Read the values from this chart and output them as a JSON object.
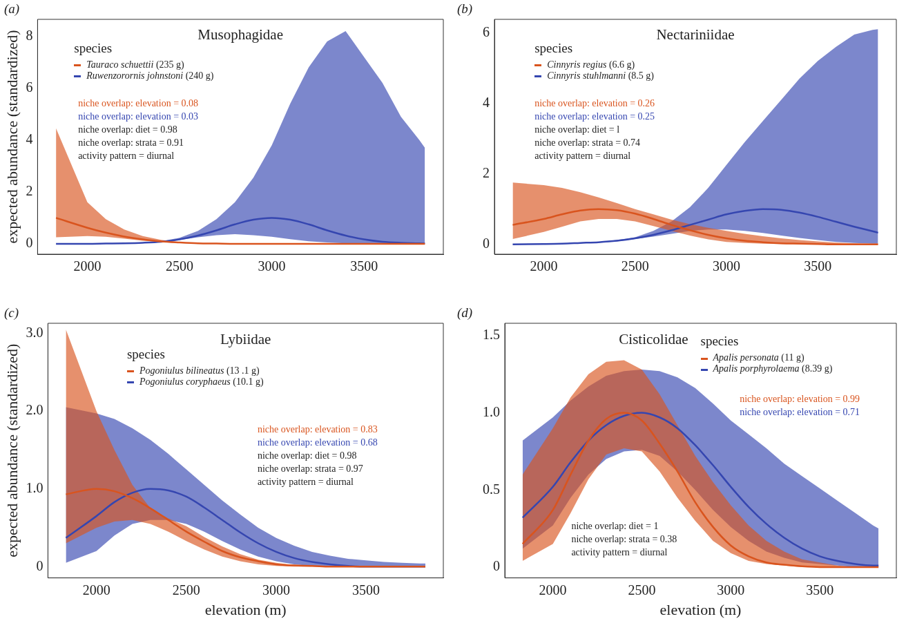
{
  "chart_data": [
    {
      "type": "line",
      "title": "Musophagidae",
      "ylabel": "expected abundance (standardized)",
      "legend_title": "species",
      "legend": "top left",
      "xlim": [
        1730,
        3930
      ],
      "xticks": [
        2000,
        2500,
        3000,
        3500
      ],
      "ylim": [
        -0.4,
        8.65
      ],
      "yticks": [
        0,
        2,
        4,
        6,
        8
      ],
      "grid": false,
      "annotations": [
        "(a)",
        "niche overlap: elevation = 0.08",
        "niche overlap: elevation = 0.03",
        "niche overlap: diet = 0.98",
        "niche overlap: strata = 0.91",
        "activity pattern = diurnal"
      ],
      "x": [
        1830,
        2000,
        2100,
        2200,
        2300,
        2400,
        2500,
        2600,
        2700,
        2800,
        2900,
        3000,
        3100,
        3200,
        3300,
        3400,
        3500,
        3600,
        3700,
        3800,
        3830
      ],
      "series": [
        {
          "name": "Tauraco schuettii (235 g)",
          "color": "#d9541e",
          "values": [
            1.0,
            0.62,
            0.43,
            0.28,
            0.17,
            0.09,
            0.05,
            0.02,
            0.01,
            0,
            0,
            0,
            0,
            0,
            0,
            0,
            0,
            0,
            0,
            0,
            0
          ],
          "lower": [
            0.25,
            0.3,
            0.27,
            0.2,
            0.12,
            0.07,
            0.03,
            0.01,
            0,
            0,
            0,
            0,
            0,
            0,
            0,
            0,
            0,
            0,
            0,
            0,
            0
          ],
          "upper": [
            4.45,
            1.6,
            0.95,
            0.55,
            0.3,
            0.15,
            0.06,
            0.02,
            0.01,
            0,
            0,
            0,
            0,
            0,
            0,
            0,
            0,
            0,
            0,
            0,
            0
          ]
        },
        {
          "name": "Ruwenzorornis johnstoni (240 g)",
          "color": "#3546b0",
          "values": [
            0,
            0,
            0.01,
            0.02,
            0.04,
            0.08,
            0.17,
            0.32,
            0.52,
            0.75,
            0.93,
            1.0,
            0.93,
            0.75,
            0.52,
            0.32,
            0.17,
            0.08,
            0.04,
            0.02,
            0.01
          ],
          "lower": [
            0,
            0,
            0.01,
            0.02,
            0.03,
            0.07,
            0.15,
            0.25,
            0.33,
            0.37,
            0.33,
            0.27,
            0.18,
            0.1,
            0.05,
            0.02,
            0.01,
            0,
            0,
            0,
            0
          ],
          "upper": [
            0,
            0,
            0.01,
            0.02,
            0.05,
            0.1,
            0.23,
            0.5,
            0.95,
            1.6,
            2.55,
            3.8,
            5.4,
            6.8,
            7.8,
            8.2,
            7.2,
            6.2,
            4.9,
            4.0,
            3.7
          ]
        }
      ]
    },
    {
      "type": "line",
      "title": "Nectariniidae",
      "legend_title": "species",
      "legend": "top left",
      "xlim": [
        1730,
        3930
      ],
      "xticks": [
        2000,
        2500,
        3000,
        3500
      ],
      "ylim": [
        -0.28,
        6.38
      ],
      "yticks": [
        0,
        2,
        4,
        6
      ],
      "grid": false,
      "annotations": [
        "(b)",
        "niche overlap: elevation = 0.26",
        "niche overlap: elevation = 0.25",
        "niche overlap: diet = l",
        "niche overlap: strata = 0.74",
        "activity pattern = diurnal"
      ],
      "x": [
        1830,
        2000,
        2100,
        2200,
        2300,
        2400,
        2500,
        2600,
        2700,
        2800,
        2900,
        3000,
        3100,
        3200,
        3300,
        3400,
        3500,
        3600,
        3700,
        3800,
        3830
      ],
      "series": [
        {
          "name": "Cinnyris regius (6.6 g)",
          "color": "#d9541e",
          "values": [
            0.55,
            0.72,
            0.85,
            0.96,
            1.0,
            0.97,
            0.87,
            0.72,
            0.55,
            0.4,
            0.27,
            0.17,
            0.1,
            0.06,
            0.03,
            0.02,
            0.01,
            0,
            0,
            0,
            0
          ],
          "lower": [
            0.15,
            0.35,
            0.5,
            0.65,
            0.72,
            0.72,
            0.65,
            0.52,
            0.38,
            0.25,
            0.14,
            0.07,
            0.04,
            0.02,
            0.01,
            0,
            0,
            0,
            0,
            0,
            0
          ],
          "upper": [
            1.75,
            1.68,
            1.6,
            1.48,
            1.33,
            1.17,
            1.0,
            0.85,
            0.7,
            0.57,
            0.47,
            0.38,
            0.3,
            0.23,
            0.17,
            0.12,
            0.08,
            0.05,
            0.03,
            0.02,
            0.02
          ]
        },
        {
          "name": "Cinnyris stuhlmanni (8.5 g)",
          "color": "#3546b0",
          "values": [
            0,
            0.01,
            0.02,
            0.04,
            0.06,
            0.1,
            0.17,
            0.27,
            0.4,
            0.55,
            0.7,
            0.85,
            0.95,
            1.0,
            0.98,
            0.9,
            0.78,
            0.64,
            0.5,
            0.37,
            0.33
          ],
          "lower": [
            0,
            0.01,
            0.02,
            0.03,
            0.05,
            0.08,
            0.15,
            0.22,
            0.3,
            0.38,
            0.42,
            0.42,
            0.38,
            0.32,
            0.25,
            0.18,
            0.12,
            0.07,
            0.04,
            0.02,
            0.02
          ],
          "upper": [
            0,
            0.01,
            0.02,
            0.04,
            0.07,
            0.12,
            0.2,
            0.38,
            0.65,
            1.05,
            1.6,
            2.25,
            2.9,
            3.5,
            4.1,
            4.7,
            5.2,
            5.6,
            5.95,
            6.08,
            6.1
          ]
        }
      ]
    },
    {
      "type": "line",
      "title": "Lybiidae",
      "xlabel": "elevation (m)",
      "ylabel": "expected abundance (standardized)",
      "legend_title": "species",
      "legend": "top left",
      "xlim": [
        1730,
        3930
      ],
      "xticks": [
        2000,
        2500,
        3000,
        3500
      ],
      "ylim": [
        -0.145,
        3.13
      ],
      "yticks": [
        0,
        {
          "value": 1,
          "label": "1.0"
        },
        {
          "value": 2,
          "label": "2.0"
        },
        {
          "value": 3,
          "label": "3.0"
        }
      ],
      "grid": false,
      "annotations": [
        "(c)",
        "niche overlap: elevation = 0.83",
        "niche overlap: elevation = 0.68",
        "niche overlap: diet = 0.98",
        "niche overlap: strata = 0.97",
        "activity pattern = diurnal"
      ],
      "x": [
        1830,
        2000,
        2100,
        2200,
        2300,
        2400,
        2500,
        2600,
        2700,
        2800,
        2900,
        3000,
        3100,
        3200,
        3300,
        3400,
        3500,
        3600,
        3700,
        3800,
        3830
      ],
      "series": [
        {
          "name": "Pogoniulus bilineatus (13 .1 g)",
          "color": "#d9541e",
          "values": [
            0.93,
            1.0,
            0.97,
            0.88,
            0.75,
            0.6,
            0.45,
            0.32,
            0.2,
            0.12,
            0.07,
            0.03,
            0.015,
            0.01,
            0,
            0,
            0,
            0,
            0,
            0,
            0
          ],
          "lower": [
            0.3,
            0.5,
            0.58,
            0.6,
            0.55,
            0.45,
            0.33,
            0.22,
            0.13,
            0.07,
            0.03,
            0.01,
            0,
            0,
            0,
            0,
            0,
            0,
            0,
            0,
            0
          ],
          "upper": [
            3.05,
            2.0,
            1.5,
            1.05,
            0.75,
            0.62,
            0.52,
            0.38,
            0.26,
            0.16,
            0.09,
            0.05,
            0.02,
            0.01,
            0,
            0,
            0,
            0,
            0,
            0,
            0
          ]
        },
        {
          "name": "Pogoniulus coryphaeus (10.1 g)",
          "color": "#3546b0",
          "values": [
            0.37,
            0.65,
            0.83,
            0.95,
            1.0,
            0.98,
            0.9,
            0.76,
            0.6,
            0.44,
            0.3,
            0.19,
            0.11,
            0.06,
            0.03,
            0.01,
            0,
            0,
            0,
            0,
            0
          ],
          "lower": [
            0.05,
            0.2,
            0.4,
            0.55,
            0.6,
            0.6,
            0.55,
            0.45,
            0.33,
            0.22,
            0.13,
            0.07,
            0.03,
            0.01,
            0,
            0,
            0,
            0,
            0,
            0,
            0
          ],
          "upper": [
            2.05,
            1.97,
            1.9,
            1.78,
            1.63,
            1.45,
            1.25,
            1.05,
            0.85,
            0.67,
            0.5,
            0.37,
            0.27,
            0.19,
            0.14,
            0.1,
            0.08,
            0.06,
            0.05,
            0.04,
            0.04
          ]
        }
      ]
    },
    {
      "type": "line",
      "title": "Cisticolidae",
      "xlabel": "elevation (m)",
      "legend_title": "species",
      "legend": "top right",
      "xlim": [
        1730,
        3930
      ],
      "xticks": [
        2000,
        2500,
        3000,
        3500
      ],
      "ylim": [
        -0.07,
        1.58
      ],
      "yticks": [
        0,
        0.5,
        {
          "value": 1,
          "label": "1.0"
        },
        1.5
      ],
      "grid": false,
      "annotations": [
        "(d)",
        "niche overlap: elevation = 0.99",
        "niche overlap: elevation = 0.71",
        "niche overlap: diet = 1",
        "niche overlap: strata = 0.38",
        "activity pattern = diurnal"
      ],
      "x": [
        1830,
        2000,
        2100,
        2200,
        2300,
        2400,
        2500,
        2600,
        2700,
        2800,
        2900,
        3000,
        3100,
        3200,
        3300,
        3400,
        3500,
        3600,
        3700,
        3800,
        3830
      ],
      "series": [
        {
          "name": "Apalis personata (11 g)",
          "color": "#d9541e",
          "values": [
            0.15,
            0.37,
            0.6,
            0.82,
            0.96,
            1.0,
            0.95,
            0.8,
            0.62,
            0.42,
            0.26,
            0.14,
            0.07,
            0.03,
            0.015,
            0.005,
            0,
            0,
            0,
            0,
            0
          ],
          "lower": [
            0.04,
            0.15,
            0.35,
            0.57,
            0.73,
            0.77,
            0.75,
            0.62,
            0.45,
            0.3,
            0.17,
            0.09,
            0.04,
            0.02,
            0.01,
            0,
            0,
            0,
            0,
            0,
            0
          ],
          "upper": [
            0.6,
            0.9,
            1.1,
            1.25,
            1.33,
            1.34,
            1.28,
            1.12,
            0.92,
            0.72,
            0.55,
            0.4,
            0.27,
            0.17,
            0.1,
            0.05,
            0.03,
            0.01,
            0,
            0,
            0
          ]
        },
        {
          "name": "Apalis porphyrolaema (8.39 g)",
          "color": "#3546b0",
          "values": [
            0.32,
            0.52,
            0.68,
            0.82,
            0.92,
            0.98,
            1.0,
            0.97,
            0.9,
            0.79,
            0.66,
            0.52,
            0.39,
            0.28,
            0.19,
            0.12,
            0.07,
            0.04,
            0.02,
            0.01,
            0.01
          ],
          "lower": [
            0.12,
            0.27,
            0.45,
            0.6,
            0.7,
            0.75,
            0.76,
            0.72,
            0.62,
            0.5,
            0.37,
            0.26,
            0.17,
            0.1,
            0.06,
            0.03,
            0.02,
            0.01,
            0,
            0,
            0
          ],
          "upper": [
            0.82,
            0.97,
            1.08,
            1.17,
            1.24,
            1.27,
            1.28,
            1.27,
            1.23,
            1.16,
            1.06,
            0.95,
            0.86,
            0.77,
            0.67,
            0.59,
            0.51,
            0.43,
            0.35,
            0.27,
            0.25
          ]
        }
      ]
    }
  ]
}
